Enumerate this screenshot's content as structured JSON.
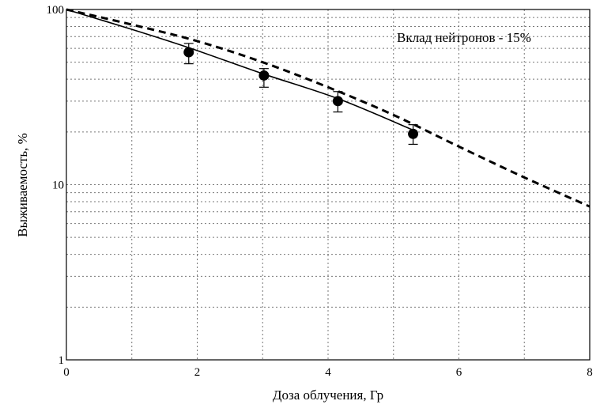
{
  "chart_data": {
    "type": "line",
    "xlabel": "Доза облучения, Гр",
    "ylabel": "Выживаемость, %",
    "annotation": "Вклад нейтронов - 15%",
    "xlim": [
      0,
      8
    ],
    "ylim": [
      1,
      100
    ],
    "yscale": "log",
    "grid": true,
    "x_ticks": [
      {
        "value": 0,
        "label": "0"
      },
      {
        "value": 2,
        "label": "2"
      },
      {
        "value": 4,
        "label": "4"
      },
      {
        "value": 6,
        "label": "6"
      },
      {
        "value": 8,
        "label": "8"
      }
    ],
    "y_ticks": [
      {
        "value": 1,
        "label": "1"
      },
      {
        "value": 10,
        "label": "10"
      },
      {
        "value": 100,
        "label": "100"
      }
    ],
    "series": [
      {
        "style": "solid",
        "color": "#000000",
        "x": [
          0,
          1,
          1.9,
          3.0,
          4.15,
          5.3
        ],
        "y": [
          100,
          77,
          60,
          43,
          31,
          20.5
        ]
      },
      {
        "style": "dashed",
        "color": "#000000",
        "x": [
          0,
          1,
          2,
          3,
          4,
          5,
          6,
          7,
          8
        ],
        "y": [
          100,
          82,
          66,
          50,
          36,
          25,
          16.5,
          11,
          7.5
        ]
      },
      {
        "style": "markers",
        "color": "#000000",
        "x": [
          1.87,
          3.02,
          4.15,
          5.3
        ],
        "y": [
          57,
          42,
          30,
          19.5
        ],
        "err_low": [
          49,
          36,
          26,
          17
        ],
        "err_high": [
          64,
          46,
          34,
          22
        ]
      }
    ]
  }
}
